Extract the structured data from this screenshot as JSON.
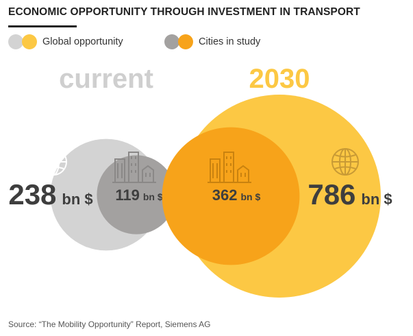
{
  "chart_data": {
    "type": "bubble",
    "title": "ECONOMIC OPPORTUNITY THROUGH INVESTMENT IN TRANSPORT",
    "legend": [
      {
        "name": "Global opportunity",
        "colors": [
          "#d3d3d3",
          "#fcc844"
        ]
      },
      {
        "name": "Cities in study",
        "colors": [
          "#a3a1a0",
          "#f7a31a"
        ]
      }
    ],
    "unit": "bn $",
    "groups": [
      {
        "label": "current",
        "label_color": "#cfcfcf",
        "global": {
          "value": 238,
          "color": "#d3d3d3",
          "value_color": "#3e3e3e"
        },
        "cities": {
          "value": 119,
          "color": "#a3a1a0",
          "value_color": "#3e3e3e"
        }
      },
      {
        "label": "2030",
        "label_color": "#fcc844",
        "global": {
          "value": 786,
          "color": "#fcc844",
          "value_color": "#3e3e3e"
        },
        "cities": {
          "value": 362,
          "color": "#f7a31a",
          "value_color": "#3e3e3e"
        }
      }
    ]
  },
  "source": "Source: “The Mobility Opportunity” Report, Siemens AG"
}
